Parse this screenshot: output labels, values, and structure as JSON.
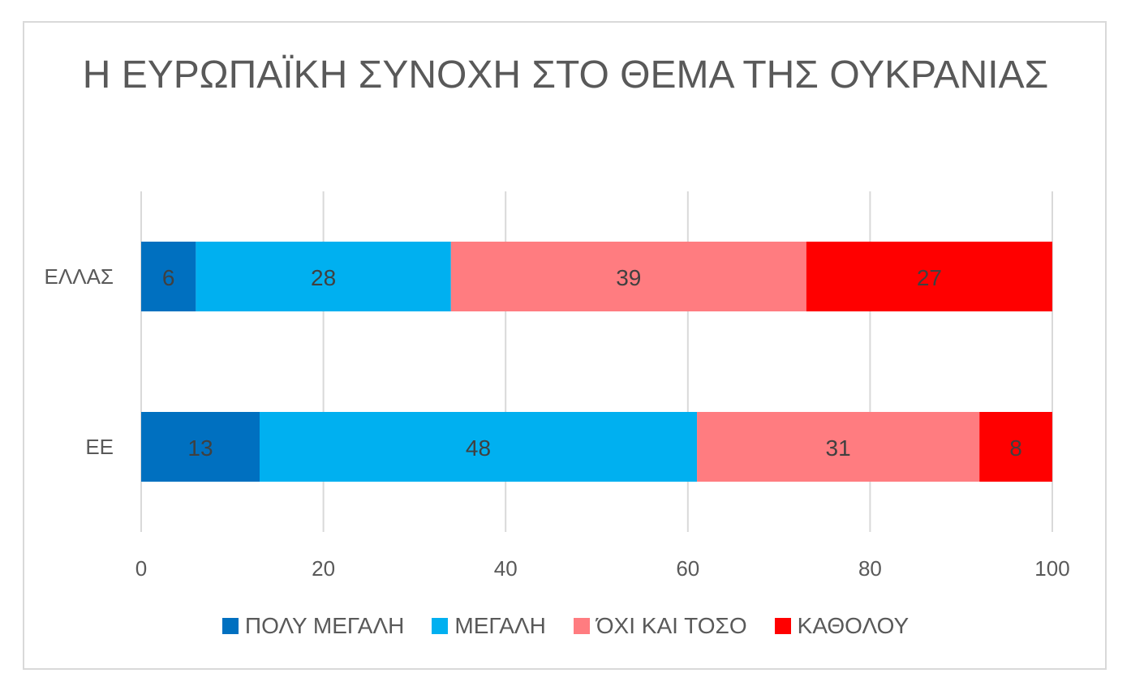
{
  "chart_data": {
    "type": "bar",
    "orientation": "horizontal",
    "stacked": true,
    "title": "Η ΕΥΡΩΠΑΪΚΗ ΣΥΝΟΧΗ ΣΤΟ ΘΕΜΑ ΤΗΣ ΟΥΚΡΑΝΙΑΣ",
    "categories": [
      "ΕΛΛΑΣ",
      "ΕΕ"
    ],
    "series": [
      {
        "name": "ΠΟΛΥ ΜΕΓΑΛΗ",
        "color": "#0070c0",
        "values": [
          6,
          13
        ],
        "labels": [
          "6",
          "13"
        ]
      },
      {
        "name": "ΜΕΓΑΛΗ",
        "color": "#00b0f0",
        "values": [
          28,
          48
        ],
        "labels": [
          "28",
          "48"
        ]
      },
      {
        "name": "ΌΧΙ ΚΑΙ ΤΟΣΟ",
        "color": "#ff7c80",
        "values": [
          39,
          31
        ],
        "labels": [
          "39",
          "31"
        ]
      },
      {
        "name": "ΚΑΘΟΛΟΥ",
        "color": "#ff0000",
        "values": [
          27,
          8
        ],
        "labels": [
          "27",
          "8"
        ]
      }
    ],
    "xlim": [
      0,
      100
    ],
    "xticks": [
      "0",
      "20",
      "40",
      "60",
      "80",
      "100"
    ],
    "grid": true,
    "legend_position": "bottom"
  }
}
